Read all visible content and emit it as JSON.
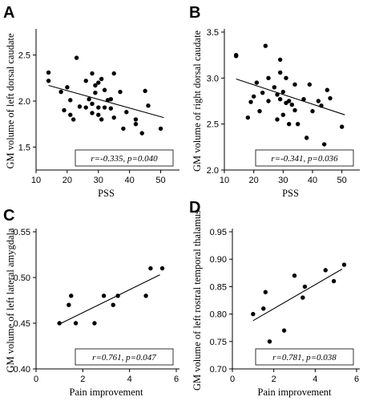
{
  "chart_data": [
    {
      "panel": "A",
      "type": "scatter",
      "xlabel": "PSS",
      "ylabel": "GM volume of left dorsal caudate",
      "xlim": [
        10,
        55
      ],
      "ylim": [
        1.25,
        2.75
      ],
      "xticks": [
        10,
        20,
        30,
        40,
        50
      ],
      "yticks": [
        1.5,
        2.0,
        2.5
      ],
      "ytick_labels": [
        "1.5",
        "2.0",
        "2.5"
      ],
      "fit": [
        [
          14,
          2.17
        ],
        [
          51,
          1.82
        ]
      ],
      "annotation": "r=-0.335, p=0.040",
      "points": [
        [
          14,
          2.31
        ],
        [
          14,
          2.22
        ],
        [
          18,
          2.1
        ],
        [
          19,
          1.9
        ],
        [
          20,
          2.15
        ],
        [
          21,
          2.01
        ],
        [
          21,
          1.85
        ],
        [
          22,
          1.8
        ],
        [
          23,
          2.47
        ],
        [
          24,
          1.94
        ],
        [
          26,
          1.93
        ],
        [
          26,
          2.22
        ],
        [
          27,
          2.02
        ],
        [
          28,
          2.3
        ],
        [
          28,
          1.97
        ],
        [
          28,
          1.87
        ],
        [
          29,
          2.09
        ],
        [
          29,
          2.17
        ],
        [
          30,
          1.93
        ],
        [
          30,
          2.2
        ],
        [
          30,
          1.85
        ],
        [
          31,
          2.24
        ],
        [
          31,
          1.8
        ],
        [
          32,
          2.12
        ],
        [
          32,
          1.93
        ],
        [
          33,
          2.01
        ],
        [
          34,
          2.02
        ],
        [
          34,
          1.92
        ],
        [
          35,
          2.3
        ],
        [
          35,
          1.82
        ],
        [
          37,
          2.1
        ],
        [
          38,
          1.7
        ],
        [
          39,
          1.88
        ],
        [
          42,
          1.8
        ],
        [
          42,
          1.75
        ],
        [
          44,
          1.65
        ],
        [
          45,
          2.11
        ],
        [
          46,
          1.95
        ],
        [
          50,
          1.7
        ]
      ]
    },
    {
      "panel": "B",
      "type": "scatter",
      "xlabel": "PSS",
      "ylabel": "GM volume of right dorsal caudate",
      "xlim": [
        10,
        55
      ],
      "ylim": [
        2.0,
        3.5
      ],
      "xticks": [
        10,
        20,
        30,
        40,
        50
      ],
      "yticks": [
        2.0,
        2.5,
        3.0,
        3.5
      ],
      "ytick_labels": [
        "2.0",
        "2.5",
        "3.0",
        "3.5"
      ],
      "fit": [
        [
          14,
          2.99
        ],
        [
          51,
          2.6
        ]
      ],
      "annotation": "r=-0.341, p=0.036",
      "points": [
        [
          14,
          3.25
        ],
        [
          14,
          3.24
        ],
        [
          18,
          2.57
        ],
        [
          19,
          2.74
        ],
        [
          20,
          2.8
        ],
        [
          21,
          2.95
        ],
        [
          22,
          2.64
        ],
        [
          23,
          2.84
        ],
        [
          24,
          3.35
        ],
        [
          25,
          2.75
        ],
        [
          25,
          3.0
        ],
        [
          27,
          2.9
        ],
        [
          28,
          2.55
        ],
        [
          28,
          2.82
        ],
        [
          29,
          3.2
        ],
        [
          29,
          3.06
        ],
        [
          29,
          2.77
        ],
        [
          30,
          2.6
        ],
        [
          30,
          2.85
        ],
        [
          31,
          3.0
        ],
        [
          31,
          2.73
        ],
        [
          32,
          2.75
        ],
        [
          32,
          2.5
        ],
        [
          33,
          2.71
        ],
        [
          34,
          2.93
        ],
        [
          34,
          2.65
        ],
        [
          35,
          2.5
        ],
        [
          37,
          2.77
        ],
        [
          38,
          2.35
        ],
        [
          39,
          2.93
        ],
        [
          40,
          2.64
        ],
        [
          42,
          2.75
        ],
        [
          43,
          2.7
        ],
        [
          44,
          2.28
        ],
        [
          45,
          2.87
        ],
        [
          46,
          2.78
        ],
        [
          50,
          2.47
        ]
      ]
    },
    {
      "panel": "C",
      "type": "scatter",
      "xlabel": "Pain improvement",
      "ylabel": "GM volume of left lateral amygdala",
      "xlim": [
        0,
        6
      ],
      "ylim": [
        0.4,
        0.55
      ],
      "xticks": [
        0,
        2,
        4,
        6
      ],
      "yticks": [
        0.4,
        0.45,
        0.5,
        0.55
      ],
      "ytick_labels": [
        "0.40",
        "0.45",
        "0.50",
        "0.55"
      ],
      "fit": [
        [
          1,
          0.449
        ],
        [
          5.3,
          0.503
        ]
      ],
      "annotation": "r=0.761, p=0.047",
      "points": [
        [
          1,
          0.45
        ],
        [
          1.4,
          0.47
        ],
        [
          1.5,
          0.48
        ],
        [
          1.7,
          0.45
        ],
        [
          2.5,
          0.45
        ],
        [
          2.9,
          0.48
        ],
        [
          3.3,
          0.47
        ],
        [
          3.5,
          0.48
        ],
        [
          4.7,
          0.48
        ],
        [
          4.9,
          0.51
        ],
        [
          5.4,
          0.51
        ]
      ]
    },
    {
      "panel": "D",
      "type": "scatter",
      "xlabel": "Pain improvement",
      "ylabel": "GM volume of left rostral temporal thalamus",
      "xlim": [
        0,
        6
      ],
      "ylim": [
        0.7,
        0.95
      ],
      "xticks": [
        0,
        2,
        4,
        6
      ],
      "yticks": [
        0.7,
        0.75,
        0.8,
        0.85,
        0.9,
        0.95
      ],
      "ytick_labels": [
        "0.70",
        "0.75",
        "0.80",
        "0.85",
        "0.90",
        "0.95"
      ],
      "fit": [
        [
          1,
          0.788
        ],
        [
          5.3,
          0.882
        ]
      ],
      "annotation": "r=0.781, p=0.038",
      "points": [
        [
          1,
          0.8
        ],
        [
          1.5,
          0.81
        ],
        [
          1.6,
          0.84
        ],
        [
          1.8,
          0.75
        ],
        [
          2.5,
          0.77
        ],
        [
          3.0,
          0.87
        ],
        [
          3.4,
          0.83
        ],
        [
          3.5,
          0.85
        ],
        [
          4.5,
          0.88
        ],
        [
          4.9,
          0.86
        ],
        [
          5.4,
          0.89
        ]
      ]
    }
  ]
}
